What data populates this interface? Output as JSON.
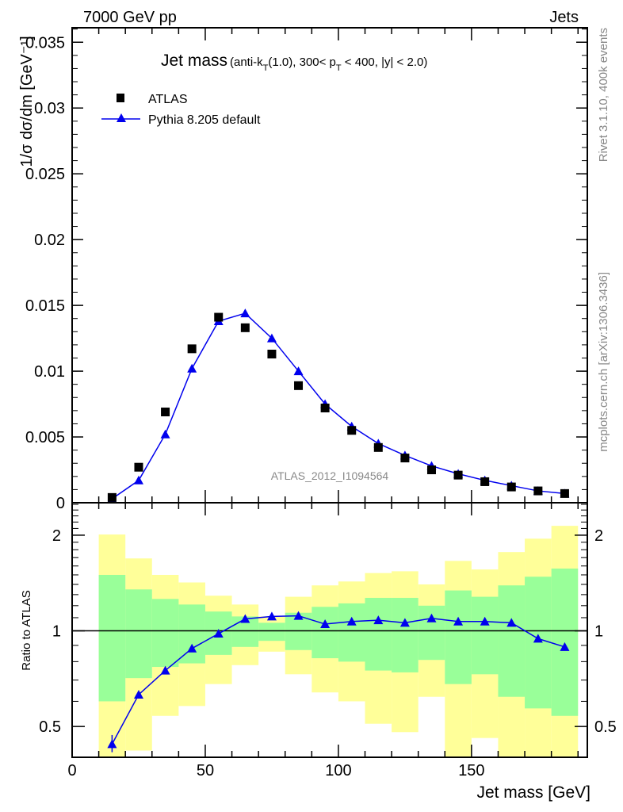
{
  "header": {
    "left": "7000 GeV pp",
    "right": "Jets"
  },
  "side_text": {
    "top": "Rivet 3.1.10,  400k events",
    "bottom": "mcplots.cern.ch [arXiv:1306.3436]"
  },
  "chart_data": [
    {
      "type": "scatter",
      "title": "Jet mass",
      "subtitle": "(anti-k_T(1.0), 300< p_T < 400, |y| < 2.0)",
      "subtitle_parts": {
        "a": "(anti-k",
        "b": "T",
        "c": "(1.0), 300< p",
        "d": "T",
        "e": " < 400, |y| < 2.0)"
      },
      "watermark": "ATLAS_2012_I1094564",
      "ylabel": "1/σ dσ/dm [GeV⁻¹]",
      "xlim": [
        0,
        193.5
      ],
      "ylim": [
        0,
        0.0361
      ],
      "yticks": [
        0,
        0.005,
        0.01,
        0.015,
        0.02,
        0.025,
        0.03,
        0.035
      ],
      "ytick_labels": [
        "0",
        "0.005",
        "0.01",
        "0.015",
        "0.02",
        "0.025",
        "0.03",
        "0.035"
      ],
      "legend_position": "top-left",
      "x": [
        15,
        25,
        35,
        45,
        55,
        65,
        75,
        85,
        95,
        105,
        115,
        125,
        135,
        145,
        155,
        165,
        175,
        185
      ],
      "series": [
        {
          "name": "ATLAS",
          "marker": "square",
          "color": "#000000",
          "values": [
            0.0004,
            0.0027,
            0.0069,
            0.0117,
            0.0141,
            0.0133,
            0.0113,
            0.0089,
            0.0072,
            0.0055,
            0.0042,
            0.0034,
            0.0025,
            0.0021,
            0.0016,
            0.0012,
            0.0009,
            0.0007
          ]
        },
        {
          "name": "Pythia 8.205 default",
          "marker": "triangle",
          "color": "#0000ee",
          "values": [
            0.0003,
            0.0017,
            0.0052,
            0.0102,
            0.0138,
            0.0144,
            0.0125,
            0.01,
            0.0075,
            0.0058,
            0.0045,
            0.0036,
            0.0028,
            0.0022,
            0.0017,
            0.0013,
            0.0009,
            0.0007
          ]
        }
      ]
    },
    {
      "type": "line",
      "ylabel": "Ratio to ATLAS",
      "xlabel": "Jet mass [GeV]",
      "yscale": "log",
      "xlim": [
        0,
        193.5
      ],
      "ylim": [
        0.4,
        2.53
      ],
      "xticks": [
        0,
        50,
        100,
        150
      ],
      "xtick_labels": [
        "0",
        "50",
        "100",
        "150"
      ],
      "yticks": [
        0.5,
        1,
        2
      ],
      "ytick_labels": [
        "0.5",
        "1",
        "2"
      ],
      "bin_edges": [
        10,
        20,
        30,
        40,
        50,
        60,
        70,
        80,
        90,
        100,
        110,
        120,
        130,
        140,
        150,
        160,
        170,
        180,
        190
      ],
      "band_outer": {
        "color": "#ffff99",
        "upper": [
          2.01,
          1.69,
          1.5,
          1.42,
          1.29,
          1.21,
          1.11,
          1.28,
          1.39,
          1.43,
          1.52,
          1.54,
          1.4,
          1.66,
          1.56,
          1.77,
          1.95,
          2.14
        ],
        "lower": [
          0.35,
          0.42,
          0.54,
          0.58,
          0.68,
          0.78,
          0.86,
          0.73,
          0.64,
          0.6,
          0.51,
          0.48,
          0.62,
          0.3,
          0.46,
          0.3,
          0.3,
          0.3
        ]
      },
      "band_inner": {
        "color": "#99ff99",
        "upper": [
          1.5,
          1.35,
          1.26,
          1.21,
          1.15,
          1.11,
          1.06,
          1.14,
          1.19,
          1.22,
          1.27,
          1.27,
          1.2,
          1.34,
          1.28,
          1.39,
          1.48,
          1.57
        ],
        "lower": [
          0.6,
          0.71,
          0.77,
          0.79,
          0.84,
          0.89,
          0.93,
          0.87,
          0.82,
          0.8,
          0.75,
          0.74,
          0.81,
          0.68,
          0.73,
          0.62,
          0.57,
          0.54
        ]
      },
      "x": [
        15,
        25,
        35,
        45,
        55,
        65,
        75,
        85,
        95,
        105,
        115,
        125,
        135,
        145,
        155,
        165,
        175,
        185
      ],
      "series": [
        {
          "name": "Pythia 8.205 default",
          "color": "#0000ee",
          "values": [
            0.44,
            0.63,
            0.75,
            0.88,
            0.98,
            1.09,
            1.11,
            1.115,
            1.05,
            1.07,
            1.08,
            1.06,
            1.095,
            1.07,
            1.07,
            1.06,
            0.945,
            0.89
          ]
        }
      ]
    }
  ]
}
